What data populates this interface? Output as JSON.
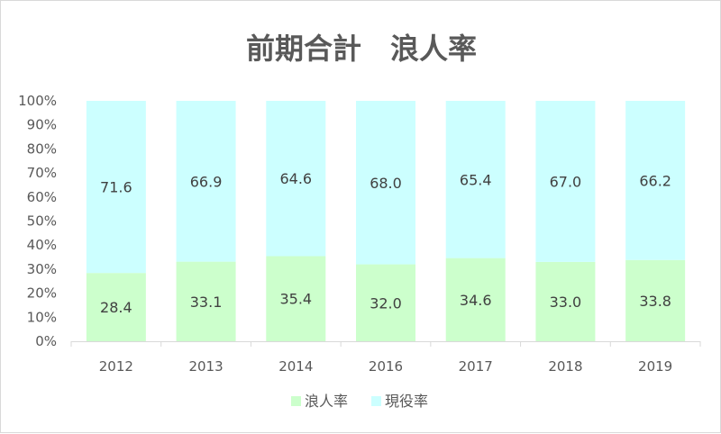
{
  "chart_data": {
    "type": "bar",
    "stacked": "percent",
    "title": "前期合計　浪人率",
    "categories": [
      "2012",
      "2013",
      "2014",
      "2016",
      "2017",
      "2018",
      "2019"
    ],
    "series": [
      {
        "name": "浪人率",
        "values": [
          28.4,
          33.1,
          35.4,
          32.0,
          34.6,
          33.0,
          33.8
        ],
        "color": "#ccffcc"
      },
      {
        "name": "現役率",
        "values": [
          71.6,
          66.9,
          64.6,
          68.0,
          65.4,
          67.0,
          66.2
        ],
        "color": "#ccffff"
      }
    ],
    "y_ticks": [
      "0%",
      "10%",
      "20%",
      "30%",
      "40%",
      "50%",
      "60%",
      "70%",
      "80%",
      "90%",
      "100%"
    ],
    "ylim": [
      0,
      100
    ],
    "legend_position": "bottom",
    "grid": false
  }
}
